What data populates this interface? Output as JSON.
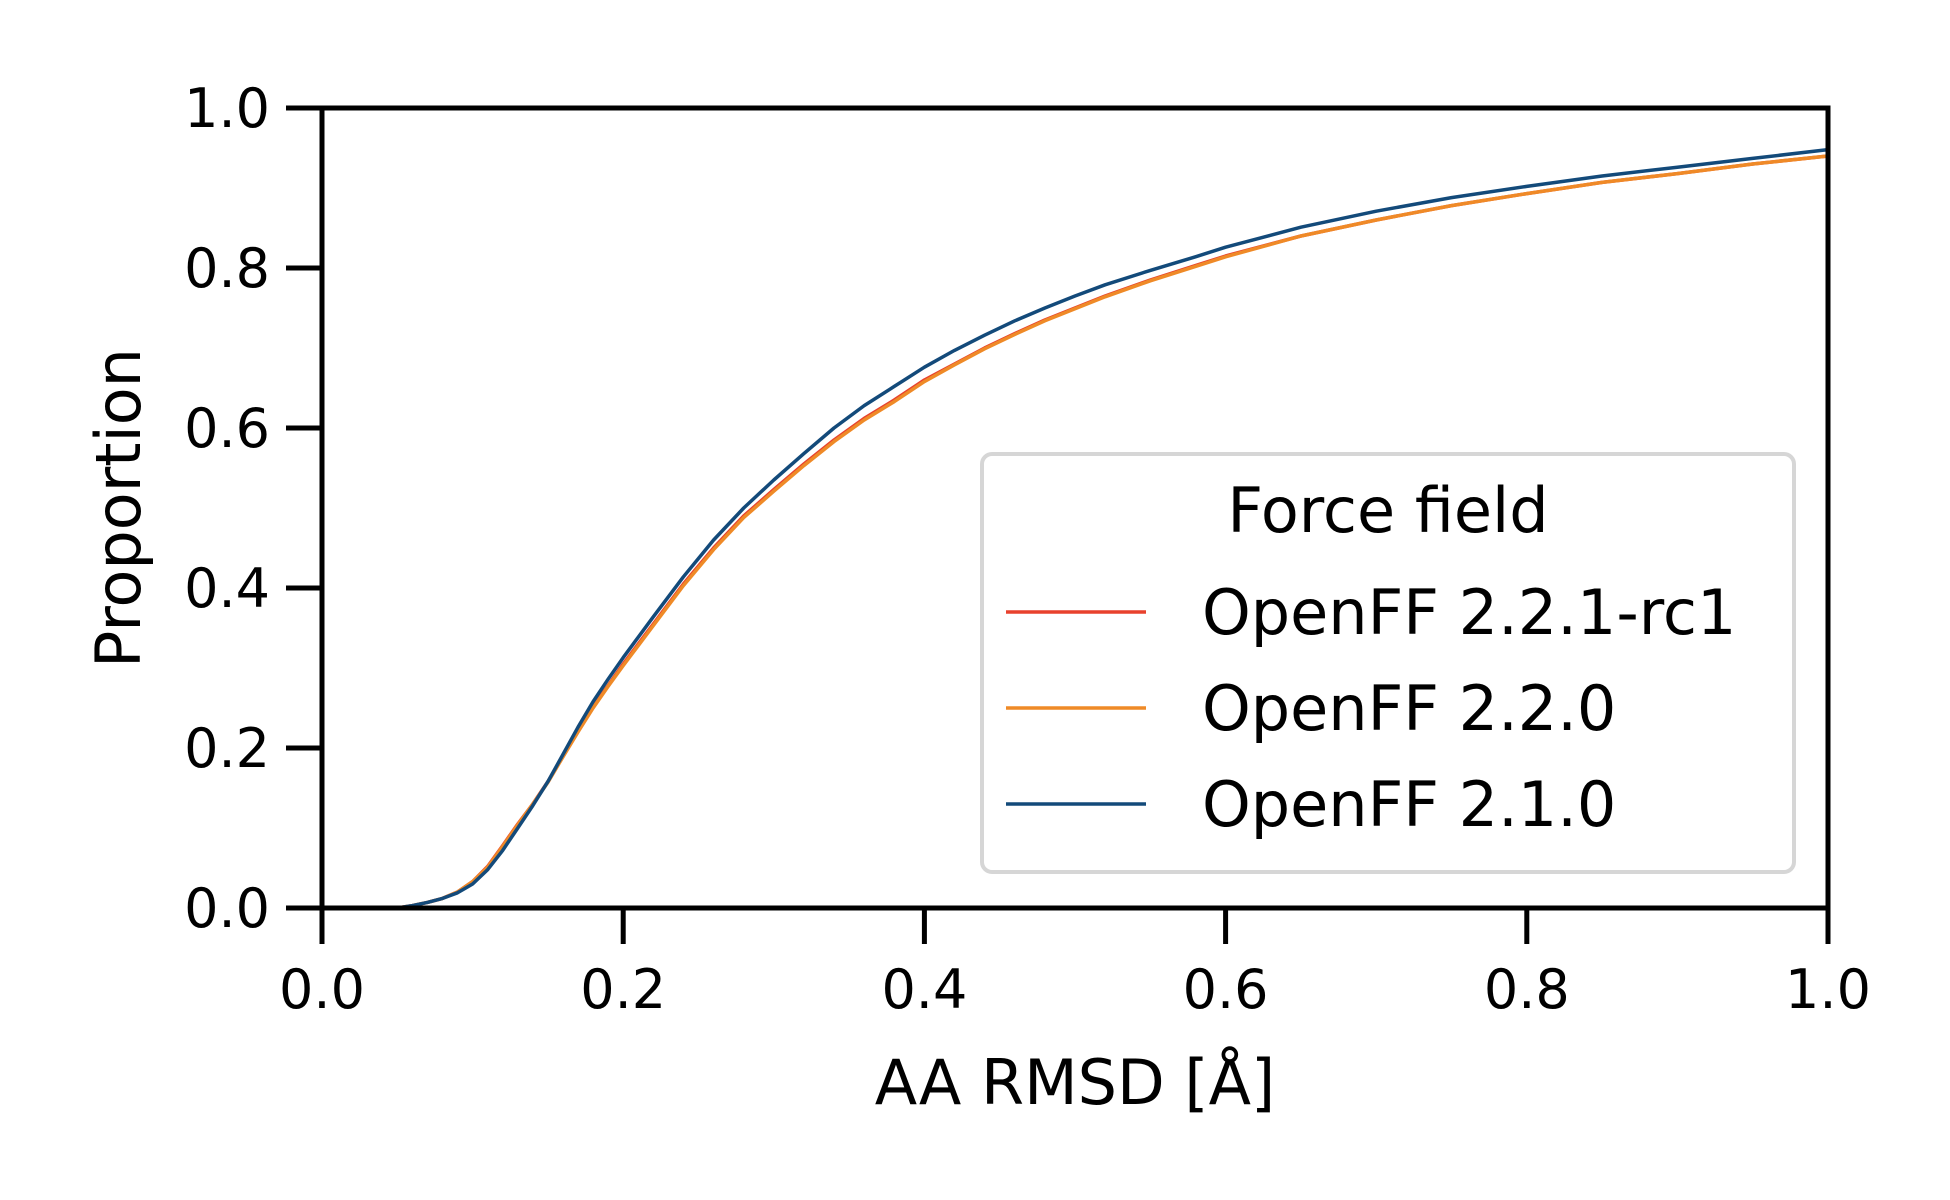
{
  "chart_data": {
    "type": "line",
    "xlabel": "AA RMSD [Å]",
    "ylabel": "Proportion",
    "xlim": [
      0.0,
      1.0
    ],
    "ylim": [
      0.0,
      1.0
    ],
    "x_ticks": [
      "0.0",
      "0.2",
      "0.4",
      "0.6",
      "0.8",
      "1.0"
    ],
    "y_ticks": [
      "0.0",
      "0.2",
      "0.4",
      "0.6",
      "0.8",
      "1.0"
    ],
    "grid": false,
    "legend": {
      "title": "Force field",
      "placement": "center-right"
    },
    "series": [
      {
        "name": "OpenFF 2.2.1-rc1",
        "color": "#e8412d",
        "x": [
          0.0,
          0.05,
          0.06,
          0.07,
          0.08,
          0.09,
          0.1,
          0.11,
          0.12,
          0.13,
          0.14,
          0.15,
          0.16,
          0.17,
          0.18,
          0.19,
          0.2,
          0.22,
          0.24,
          0.26,
          0.28,
          0.3,
          0.32,
          0.34,
          0.36,
          0.38,
          0.4,
          0.42,
          0.44,
          0.46,
          0.48,
          0.5,
          0.52,
          0.55,
          0.58,
          0.6,
          0.65,
          0.7,
          0.75,
          0.8,
          0.85,
          0.9,
          0.95,
          1.0
        ],
        "y": [
          0.0,
          0.0,
          0.003,
          0.007,
          0.012,
          0.02,
          0.033,
          0.052,
          0.078,
          0.105,
          0.13,
          0.158,
          0.19,
          0.222,
          0.252,
          0.278,
          0.305,
          0.355,
          0.405,
          0.45,
          0.49,
          0.523,
          0.555,
          0.585,
          0.612,
          0.635,
          0.66,
          0.68,
          0.7,
          0.718,
          0.735,
          0.75,
          0.765,
          0.785,
          0.803,
          0.815,
          0.84,
          0.86,
          0.878,
          0.893,
          0.907,
          0.918,
          0.93,
          0.94
        ]
      },
      {
        "name": "OpenFF 2.2.0",
        "color": "#ef8a27",
        "x": [
          0.0,
          0.05,
          0.06,
          0.07,
          0.08,
          0.09,
          0.1,
          0.11,
          0.12,
          0.13,
          0.14,
          0.15,
          0.16,
          0.17,
          0.18,
          0.19,
          0.2,
          0.22,
          0.24,
          0.26,
          0.28,
          0.3,
          0.32,
          0.34,
          0.36,
          0.38,
          0.4,
          0.42,
          0.44,
          0.46,
          0.48,
          0.5,
          0.52,
          0.55,
          0.58,
          0.6,
          0.65,
          0.7,
          0.75,
          0.8,
          0.85,
          0.9,
          0.95,
          1.0
        ],
        "y": [
          0.0,
          0.0,
          0.003,
          0.007,
          0.012,
          0.02,
          0.033,
          0.051,
          0.077,
          0.104,
          0.13,
          0.157,
          0.189,
          0.22,
          0.25,
          0.277,
          0.303,
          0.353,
          0.403,
          0.448,
          0.488,
          0.521,
          0.553,
          0.583,
          0.61,
          0.633,
          0.658,
          0.679,
          0.699,
          0.717,
          0.734,
          0.749,
          0.764,
          0.784,
          0.802,
          0.814,
          0.84,
          0.86,
          0.878,
          0.893,
          0.907,
          0.918,
          0.93,
          0.94
        ]
      },
      {
        "name": "OpenFF 2.1.0",
        "color": "#134a7a",
        "x": [
          0.0,
          0.05,
          0.06,
          0.07,
          0.08,
          0.09,
          0.1,
          0.11,
          0.12,
          0.13,
          0.14,
          0.15,
          0.16,
          0.17,
          0.18,
          0.19,
          0.2,
          0.22,
          0.24,
          0.26,
          0.28,
          0.3,
          0.32,
          0.34,
          0.36,
          0.38,
          0.4,
          0.42,
          0.44,
          0.46,
          0.48,
          0.5,
          0.52,
          0.55,
          0.58,
          0.6,
          0.65,
          0.7,
          0.75,
          0.8,
          0.85,
          0.9,
          0.95,
          1.0
        ],
        "y": [
          0.0,
          0.0,
          0.003,
          0.007,
          0.012,
          0.019,
          0.03,
          0.048,
          0.072,
          0.1,
          0.128,
          0.158,
          0.192,
          0.226,
          0.258,
          0.286,
          0.313,
          0.364,
          0.414,
          0.46,
          0.5,
          0.535,
          0.568,
          0.6,
          0.628,
          0.652,
          0.676,
          0.697,
          0.716,
          0.734,
          0.75,
          0.765,
          0.779,
          0.797,
          0.814,
          0.826,
          0.851,
          0.871,
          0.888,
          0.902,
          0.915,
          0.926,
          0.937,
          0.948
        ]
      }
    ]
  }
}
